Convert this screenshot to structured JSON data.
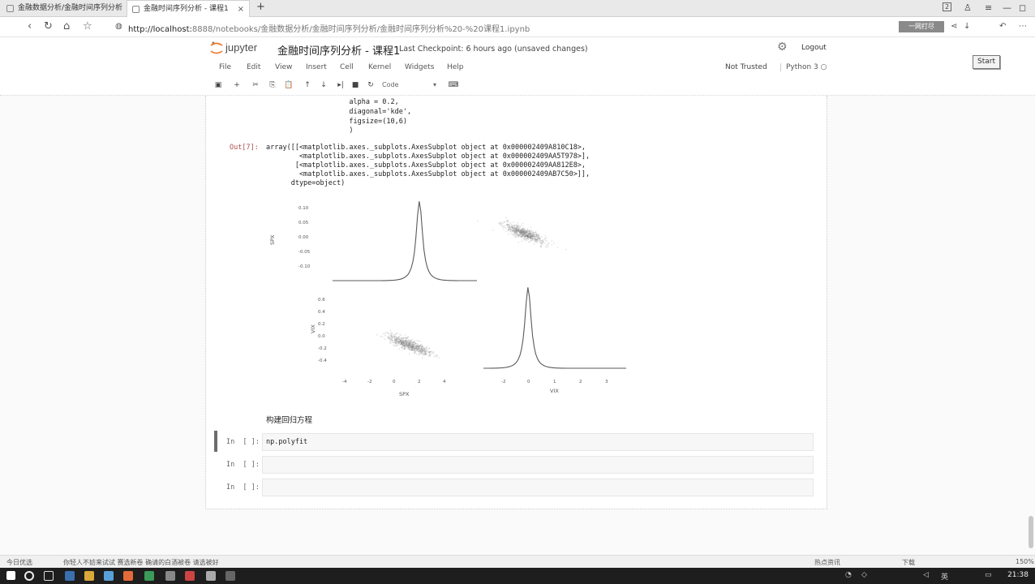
{
  "browser": {
    "tabs": [
      {
        "title": "金融数据分析/金融时间序列分析"
      },
      {
        "title": "金融时间序列分析 - 课程1"
      }
    ],
    "tab_close": "×",
    "new_tab": "+",
    "page_badge": "2",
    "url_host": "http://localhost:",
    "url_path": "8888/notebooks/金融数据分析/金融时间序列分析/金融时间序列分析%20-%20课程1.ipynb",
    "search_box": "一网打尽"
  },
  "jupyter": {
    "logo_text": "jupyter",
    "notebook_title": "金融时间序列分析 - 课程1",
    "checkpoint": "Last Checkpoint: 6 hours ago (unsaved changes)",
    "logout": "Logout",
    "start_button": "Start",
    "menu": [
      "File",
      "Edit",
      "View",
      "Insert",
      "Cell",
      "Kernel",
      "Widgets",
      "Help"
    ],
    "trust_status": "Not Trusted",
    "kernel_name": "Python 3",
    "cell_type": "Code",
    "toolbar_icons": [
      "save-icon",
      "plus-icon",
      "cut-icon",
      "copy-icon",
      "paste-icon",
      "arrow-up-icon",
      "arrow-down-icon",
      "step-forward-icon",
      "stop-icon",
      "restart-icon"
    ],
    "cmd_palette": "⌨"
  },
  "cells": {
    "code_lines": [
      "                    alpha = 0.2,",
      "                    diagonal='kde',",
      "                    figsize=(10,6)",
      "                    )"
    ],
    "output_prompt": "Out[7]:",
    "output_lines": [
      "array([[<matplotlib.axes._subplots.AxesSubplot object at 0x000002409A810C18>,",
      "        <matplotlib.axes._subplots.AxesSubplot object at 0x000002409AA5T978>],",
      "       [<matplotlib.axes._subplots.AxesSubplot object at 0x000002409AA812E8>,",
      "        <matplotlib.axes._subplots.AxesSubplot object at 0x000002409AB7C50>]],",
      "      dtype=object)"
    ],
    "markdown": "构建回归方程",
    "input_cells": [
      {
        "prompt": "In  [ ]:",
        "code": "np.polyfit"
      },
      {
        "prompt": "In  [ ]:",
        "code": ""
      },
      {
        "prompt": "In  [ ]:",
        "code": ""
      }
    ]
  },
  "chart_data": {
    "type": "scatter",
    "title": "",
    "panels": [
      "SPX-SPX kde",
      "SPX-VIX scatter",
      "VIX-SPX scatter",
      "VIX-VIX kde"
    ],
    "xlabel_left": "SPX",
    "xlabel_right": "VIX",
    "ylabel_top": "SPX",
    "ylabel_bottom": "VIX",
    "x_ticks_left": [
      "-4",
      "-2",
      "0",
      "2",
      "4"
    ],
    "x_ticks_right": [
      "-2",
      "0",
      "1",
      "2",
      "3"
    ],
    "y_ticks_top": [
      "0.10",
      "0.05",
      "0.00",
      "-0.05",
      "-0.10"
    ],
    "y_ticks_bottom": [
      "0.6",
      "0.4",
      "0.2",
      "0.0",
      "-0.2",
      "-0.4"
    ],
    "alpha": 0.2,
    "diagonal": "kde",
    "colors": {
      "kde": "#5a5a5a",
      "points": "#7a7a7a"
    }
  },
  "status_bar": {
    "left": "今日优选",
    "news": "你轻人不妨来试试  赛选新卷  确请的白酒被卷  请选被好",
    "right_items": [
      "热点资讯",
      "下载"
    ],
    "zoom": "150%"
  },
  "taskbar": {
    "clock": "21:38",
    "lang": "英"
  }
}
